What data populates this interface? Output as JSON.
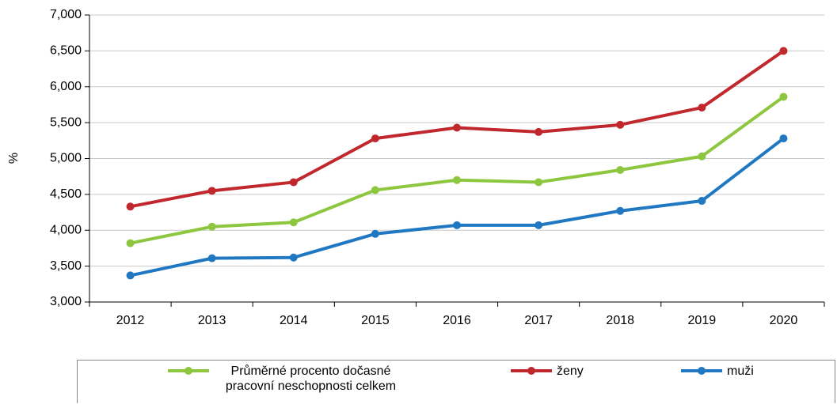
{
  "chart_data": {
    "type": "line",
    "y_label": "%",
    "categories": [
      "2012",
      "2013",
      "2014",
      "2015",
      "2016",
      "2017",
      "2018",
      "2019",
      "2020"
    ],
    "series": [
      {
        "name": "Průměrné procento dočasné pracovní neschopnosti celkem",
        "color": "#8dc63f",
        "values": [
          3.82,
          4.05,
          4.11,
          4.56,
          4.7,
          4.67,
          4.84,
          5.03,
          5.86
        ]
      },
      {
        "name": "ženy",
        "color": "#c0282d",
        "values": [
          4.33,
          4.55,
          4.67,
          5.28,
          5.43,
          5.37,
          5.47,
          5.71,
          6.5
        ]
      },
      {
        "name": "muži",
        "color": "#1f78c1",
        "values": [
          3.37,
          3.61,
          3.62,
          3.95,
          4.07,
          4.07,
          4.27,
          4.41,
          5.28
        ]
      }
    ],
    "ylim": [
      3,
      7
    ],
    "yticks": [
      {
        "value": 3,
        "label": "3,000"
      },
      {
        "value": 3.5,
        "label": "3,500"
      },
      {
        "value": 4,
        "label": "4,000"
      },
      {
        "value": 4.5,
        "label": "4,500"
      },
      {
        "value": 5,
        "label": "5,000"
      },
      {
        "value": 5.5,
        "label": "5,500"
      },
      {
        "value": 6,
        "label": "6,000"
      },
      {
        "value": 6.5,
        "label": "6,500"
      },
      {
        "value": 7,
        "label": "7,000"
      }
    ],
    "grid": true
  }
}
